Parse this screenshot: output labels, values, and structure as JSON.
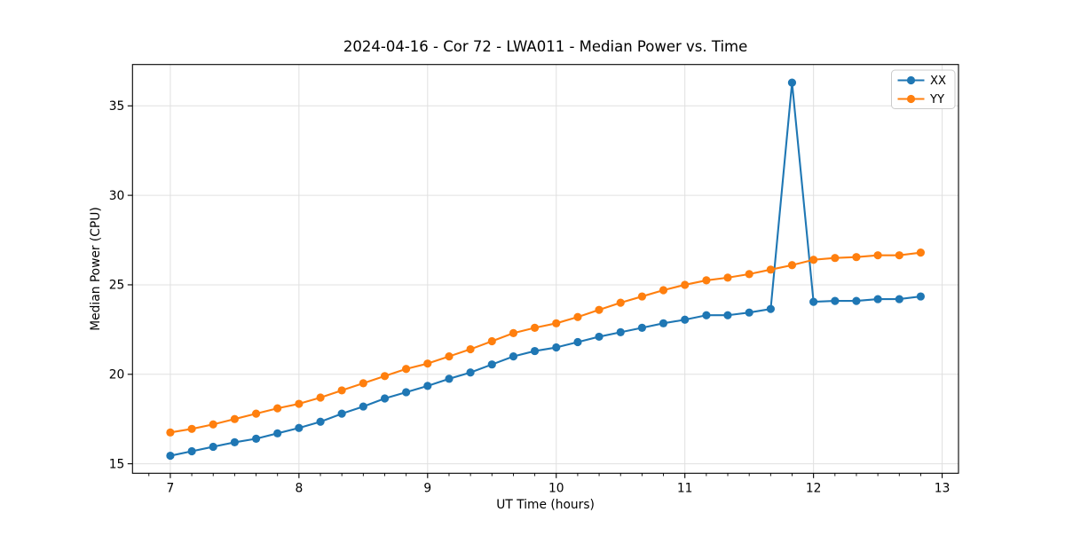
{
  "figure": {
    "background": "#ffffff"
  },
  "chart_data": {
    "type": "line",
    "title": "2024-04-16 - Cor 72 - LWA011 - Median Power vs. Time",
    "xlabel": "UT Time (hours)",
    "ylabel": "Median Power (CPU)",
    "xlim": [
      6.706,
      13.127
    ],
    "ylim": [
      14.47,
      37.31
    ],
    "x_ticks": [
      7,
      8,
      9,
      10,
      11,
      12,
      13
    ],
    "x_tick_labels": [
      "7",
      "8",
      "9",
      "10",
      "11",
      "12",
      "13"
    ],
    "x_minor_interval": 0.166667,
    "y_ticks": [
      15,
      20,
      25,
      30,
      35
    ],
    "y_tick_labels": [
      "15",
      "20",
      "25",
      "30",
      "35"
    ],
    "grid": true,
    "grid_color": "#e0e0e0",
    "spine_color": "#000000",
    "legend_position": "upper right",
    "x": [
      7.0,
      7.167,
      7.333,
      7.5,
      7.667,
      7.833,
      8.0,
      8.167,
      8.333,
      8.5,
      8.667,
      8.833,
      9.0,
      9.167,
      9.333,
      9.5,
      9.667,
      9.833,
      10.0,
      10.167,
      10.333,
      10.5,
      10.667,
      10.833,
      11.0,
      11.167,
      11.333,
      11.5,
      11.667,
      11.833,
      12.0,
      12.167,
      12.333,
      12.5,
      12.667,
      12.833
    ],
    "series": [
      {
        "name": "XX",
        "color": "#1f77b4",
        "marker": "circle",
        "values": [
          15.45,
          15.7,
          15.95,
          16.2,
          16.4,
          16.7,
          17.0,
          17.35,
          17.8,
          18.2,
          18.65,
          19.0,
          19.35,
          19.75,
          20.1,
          20.55,
          21.0,
          21.3,
          21.5,
          21.8,
          22.1,
          22.35,
          22.6,
          22.85,
          23.05,
          23.3,
          23.3,
          23.45,
          23.65,
          36.3,
          24.05,
          24.1,
          24.1,
          24.2,
          24.2,
          24.35
        ]
      },
      {
        "name": "YY",
        "color": "#ff7f0e",
        "marker": "circle",
        "values": [
          16.75,
          16.95,
          17.2,
          17.5,
          17.8,
          18.1,
          18.35,
          18.7,
          19.1,
          19.5,
          19.9,
          20.3,
          20.6,
          21.0,
          21.4,
          21.85,
          22.3,
          22.6,
          22.85,
          23.2,
          23.6,
          24.0,
          24.35,
          24.7,
          25.0,
          25.25,
          25.4,
          25.6,
          25.85,
          26.1,
          26.4,
          26.5,
          26.55,
          26.65,
          26.65,
          26.8
        ]
      }
    ]
  }
}
